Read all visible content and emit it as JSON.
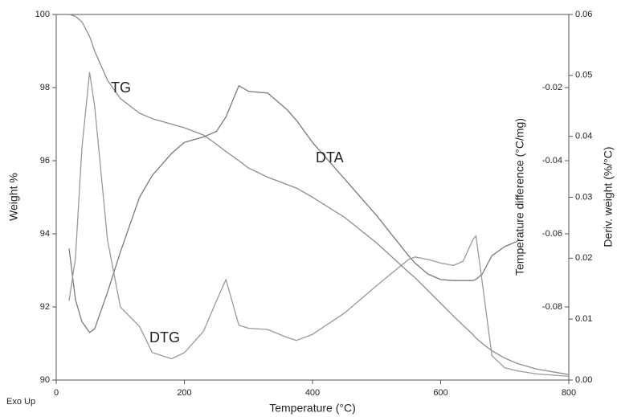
{
  "chart_data": {
    "type": "line",
    "xlabel": "Temperature (°C)",
    "ylabel": "Weight %",
    "y2label": "Temperature difference (°C/mg)",
    "y3label": "Deriv. weight (%/°C)",
    "annotations": [
      "TG",
      "DTA",
      "DTG",
      "Exo Up"
    ],
    "x": [
      20,
      30,
      40,
      52,
      60,
      80,
      100,
      130,
      150,
      180,
      200,
      230,
      250,
      265,
      285,
      300,
      330,
      360,
      375,
      400,
      450,
      500,
      550,
      560,
      580,
      600,
      620,
      635,
      650,
      655,
      665,
      680,
      700,
      720,
      750,
      800
    ],
    "xlim": [
      0,
      800
    ],
    "xticks": [
      0,
      200,
      400,
      600,
      800
    ],
    "ylim": [
      90,
      100
    ],
    "yticks": [
      90,
      92,
      94,
      96,
      98,
      100
    ],
    "y2lim": [
      -0.1,
      0
    ],
    "y2ticks": [
      -0.08,
      -0.06,
      -0.04,
      -0.02
    ],
    "y3lim": [
      0,
      0.06
    ],
    "y3ticks": [
      {
        "value": 0,
        "label": "0.00"
      },
      0.01,
      0.02,
      0.03,
      0.04,
      0.05,
      0.06
    ],
    "series": [
      {
        "name": "TG",
        "color": "#8c8c8c",
        "axis": "y",
        "values": [
          100,
          99.95,
          99.8,
          99.4,
          99.0,
          98.2,
          97.7,
          97.3,
          97.15,
          97.0,
          96.9,
          96.7,
          96.45,
          96.25,
          96.0,
          95.8,
          95.55,
          95.35,
          95.25,
          95.0,
          94.45,
          93.75,
          92.95,
          92.8,
          92.45,
          92.1,
          91.75,
          91.5,
          91.25,
          91.15,
          91.0,
          90.8,
          90.6,
          90.45,
          90.3,
          90.15
        ]
      },
      {
        "name": "DTA",
        "color": "#7a7a7a",
        "axis": "y2",
        "values": [
          -0.064,
          -0.078,
          -0.084,
          -0.087,
          -0.086,
          -0.076,
          -0.065,
          -0.05,
          -0.044,
          -0.038,
          -0.035,
          -0.0335,
          -0.032,
          -0.028,
          -0.0195,
          -0.021,
          -0.0215,
          -0.026,
          -0.029,
          -0.035,
          -0.045,
          -0.055,
          -0.066,
          -0.068,
          -0.071,
          -0.0725,
          -0.0728,
          -0.0728,
          -0.0728,
          -0.0725,
          -0.071,
          -0.066,
          -0.0635,
          -0.062,
          null,
          null
        ]
      },
      {
        "name": "DTG",
        "color": "#999999",
        "axis": "y3",
        "values": [
          0.013,
          0.02,
          0.038,
          0.0505,
          0.045,
          0.023,
          0.012,
          0.0088,
          0.0045,
          0.0035,
          0.0045,
          0.008,
          0.013,
          0.0165,
          0.009,
          0.0085,
          0.0083,
          0.007,
          0.0065,
          0.0075,
          0.011,
          0.0155,
          0.0198,
          0.0202,
          0.0198,
          0.0192,
          0.0188,
          0.0195,
          0.023,
          0.0237,
          0.016,
          0.004,
          0.002,
          0.0015,
          0.001,
          0.0006
        ]
      }
    ]
  }
}
